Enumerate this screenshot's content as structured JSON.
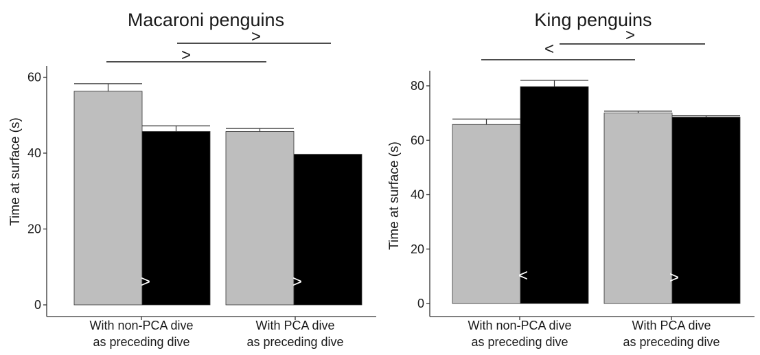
{
  "chart_data": [
    {
      "type": "bar",
      "title": "Macaroni penguins",
      "ylabel": "Time at surface (s)",
      "xlabel": "",
      "ylim": [
        0,
        60
      ],
      "yticks": [
        0,
        20,
        40,
        60
      ],
      "categories": [
        "With non-PCA dive\nas preceding dive",
        "With PCA dive\nas preceding dive"
      ],
      "series": [
        {
          "color": "#bebebe",
          "values": [
            56.3,
            45.7
          ],
          "errors": [
            2.0,
            0.8
          ]
        },
        {
          "color": "#000000",
          "values": [
            45.7,
            39.7
          ],
          "errors": [
            1.5,
            0.0
          ]
        }
      ],
      "comparisons": [
        "&gt;",
        "&gt;"
      ],
      "in_bar_marks": [
        "&gt;",
        "&gt;"
      ],
      "grid": false,
      "legend": "none"
    },
    {
      "type": "bar",
      "title": "King penguins",
      "ylabel": "Time at surface (s)",
      "xlabel": "",
      "ylim": [
        0,
        80
      ],
      "yticks": [
        0,
        20,
        40,
        60,
        80
      ],
      "categories": [
        "With non-PCA dive\nas preceding dive",
        "With PCA dive\nas preceding dive"
      ],
      "series": [
        {
          "color": "#bebebe",
          "values": [
            65.8,
            70.0
          ],
          "errors": [
            2.0,
            0.7
          ]
        },
        {
          "color": "#000000",
          "values": [
            79.7,
            68.5
          ],
          "errors": [
            2.3,
            0.5
          ]
        }
      ],
      "comparisons": [
        "&gt;",
        "&lt;"
      ],
      "in_bar_marks": [
        "&lt;",
        "&gt;"
      ],
      "grid": false,
      "legend": "none"
    }
  ]
}
